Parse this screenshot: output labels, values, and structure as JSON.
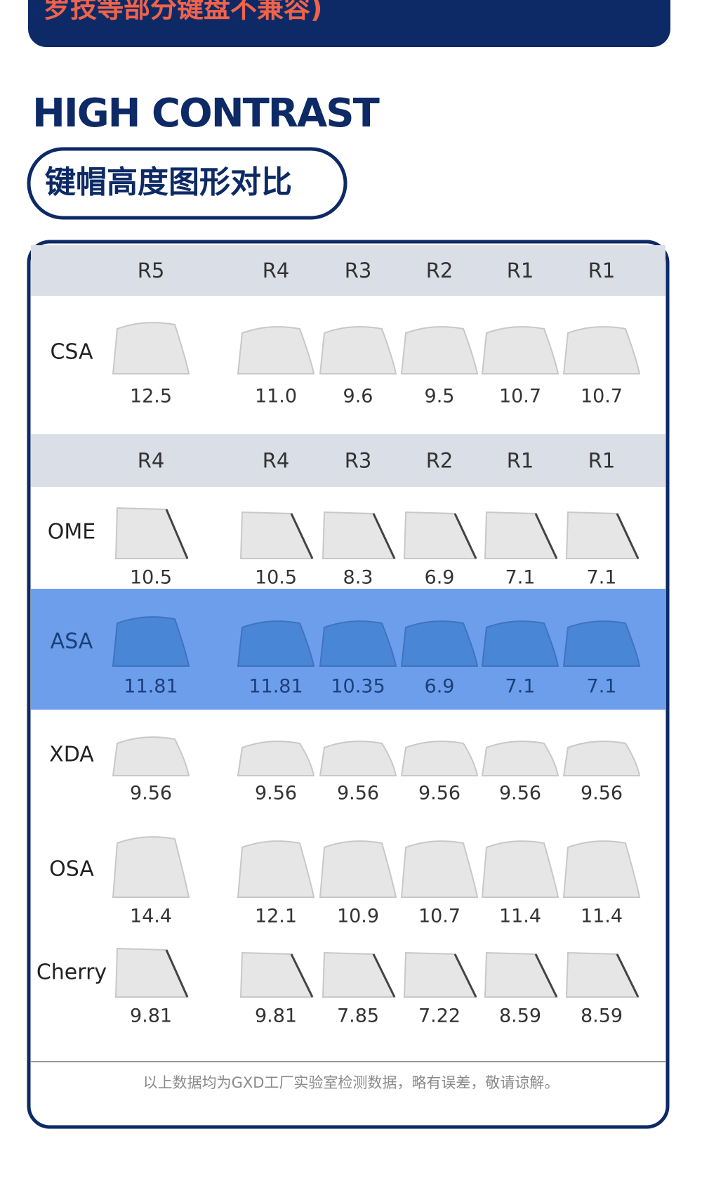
{
  "banner": {
    "text": "罗技等部分键盘不兼容)"
  },
  "heading": "HIGH CONTRAST",
  "subheading": "键帽高度图形对比",
  "table": {
    "header_rows": [
      [
        "R5",
        "R4",
        "R3",
        "R2",
        "R1",
        "R1"
      ],
      [
        "R4",
        "R4",
        "R3",
        "R2",
        "R1",
        "R1"
      ]
    ],
    "rows": [
      {
        "profile": "CSA",
        "heights": [
          "12.5",
          "11.0",
          "9.6",
          "9.5",
          "10.7",
          "10.7"
        ]
      },
      {
        "profile": "OME",
        "heights": [
          "10.5",
          "10.5",
          "8.3",
          "6.9",
          "7.1",
          "7.1"
        ]
      },
      {
        "profile": "ASA",
        "heights": [
          "11.81",
          "11.81",
          "10.35",
          "6.9",
          "7.1",
          "7.1"
        ]
      },
      {
        "profile": "XDA",
        "heights": [
          "9.56",
          "9.56",
          "9.56",
          "9.56",
          "9.56",
          "9.56"
        ]
      },
      {
        "profile": "OSA",
        "heights": [
          "14.4",
          "12.1",
          "10.9",
          "10.7",
          "11.4",
          "11.4"
        ]
      },
      {
        "profile": "Cherry",
        "heights": [
          "9.81",
          "9.81",
          "7.85",
          "7.22",
          "8.59",
          "8.59"
        ]
      }
    ]
  },
  "footnote": "以上数据均为GXD工厂实验室检测数据，略有误差，敬请谅解。"
}
